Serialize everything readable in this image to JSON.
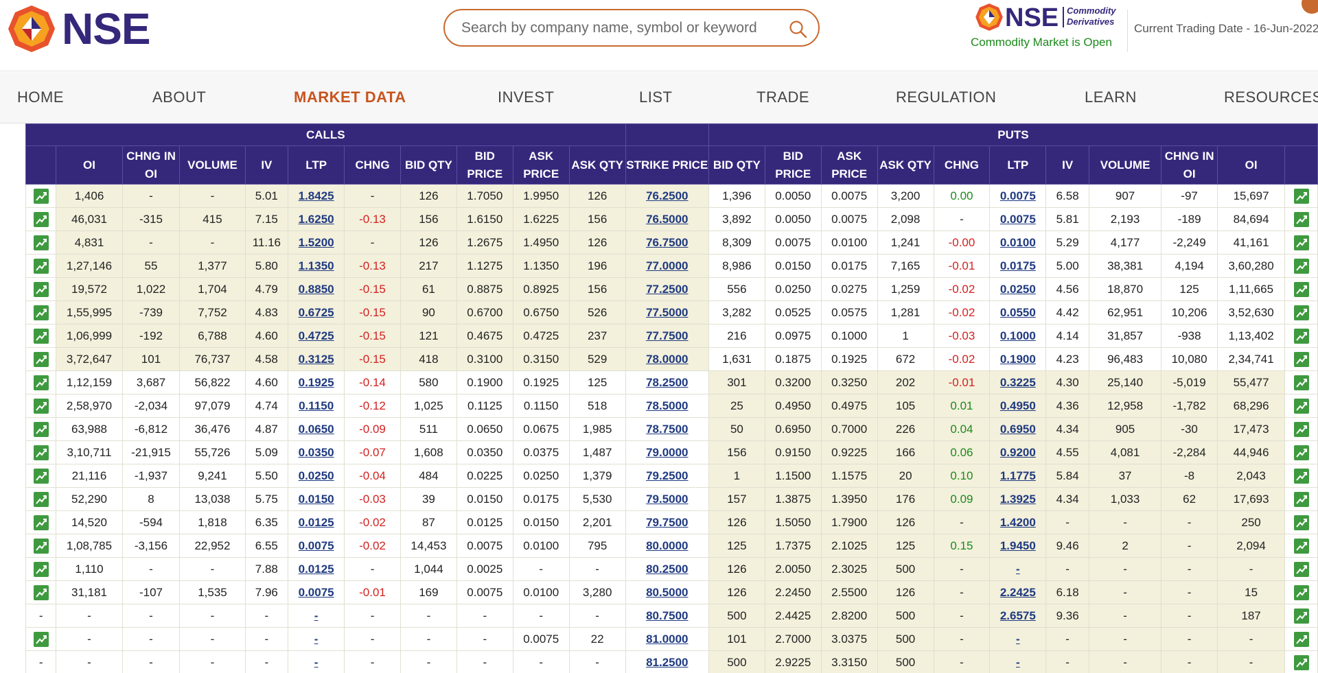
{
  "brand": {
    "name": "NSE",
    "secondary_name": "NSE",
    "secondary_tagline_1": "Commodity",
    "secondary_tagline_2": "Derivatives"
  },
  "search": {
    "placeholder": "Search by company name, symbol or keyword"
  },
  "status": {
    "market": "Commodity Market is Open",
    "trading_date": "Current Trading Date - 16-Jun-2022"
  },
  "colors": {
    "brand_purple": "#35287b",
    "accent_orange": "#c8541f",
    "itm_bg": "#f3f0dc",
    "positive": "#1b8a1b",
    "negative": "#d42020"
  },
  "nav": [
    {
      "label": "HOME",
      "active": false
    },
    {
      "label": "ABOUT",
      "active": false
    },
    {
      "label": "MARKET DATA",
      "active": true
    },
    {
      "label": "INVEST",
      "active": false
    },
    {
      "label": "LIST",
      "active": false
    },
    {
      "label": "TRADE",
      "active": false
    },
    {
      "label": "REGULATION",
      "active": false
    },
    {
      "label": "LEARN",
      "active": false
    },
    {
      "label": "RESOURCES",
      "active": false
    }
  ],
  "table": {
    "calls_label": "CALLS",
    "puts_label": "PUTS",
    "call_headers": [
      "OI",
      "CHNG IN OI",
      "VOLUME",
      "IV",
      "LTP",
      "CHNG",
      "BID QTY",
      "BID PRICE",
      "ASK PRICE",
      "ASK QTY"
    ],
    "strike_header": "STRIKE PRICE",
    "put_headers": [
      "BID QTY",
      "BID PRICE",
      "ASK PRICE",
      "ASK QTY",
      "CHNG",
      "LTP",
      "IV",
      "VOLUME",
      "CHNG IN OI",
      "OI"
    ],
    "rows": [
      {
        "cc": true,
        "pc": true,
        "c_itm": true,
        "p_itm": false,
        "calls": [
          "1,406",
          "-",
          "-",
          "5.01",
          "1.8425",
          "-",
          "126",
          "1.7050",
          "1.9950",
          "126"
        ],
        "strike": "76.2500",
        "puts": [
          "1,396",
          "0.0050",
          "0.0075",
          "3,200",
          "0.00",
          "0.0075",
          "6.58",
          "907",
          "-97",
          "15,697"
        ]
      },
      {
        "cc": true,
        "pc": true,
        "c_itm": true,
        "p_itm": false,
        "calls": [
          "46,031",
          "-315",
          "415",
          "7.15",
          "1.6250",
          "-0.13",
          "156",
          "1.6150",
          "1.6225",
          "156"
        ],
        "strike": "76.5000",
        "puts": [
          "3,892",
          "0.0050",
          "0.0075",
          "2,098",
          "-",
          "0.0075",
          "5.81",
          "2,193",
          "-189",
          "84,694"
        ]
      },
      {
        "cc": true,
        "pc": true,
        "c_itm": true,
        "p_itm": false,
        "calls": [
          "4,831",
          "-",
          "-",
          "11.16",
          "1.5200",
          "-",
          "126",
          "1.2675",
          "1.4950",
          "126"
        ],
        "strike": "76.7500",
        "puts": [
          "8,309",
          "0.0075",
          "0.0100",
          "1,241",
          "-0.00",
          "0.0100",
          "5.29",
          "4,177",
          "-2,249",
          "41,161"
        ]
      },
      {
        "cc": true,
        "pc": true,
        "c_itm": true,
        "p_itm": false,
        "calls": [
          "1,27,146",
          "55",
          "1,377",
          "5.80",
          "1.1350",
          "-0.13",
          "217",
          "1.1275",
          "1.1350",
          "196"
        ],
        "strike": "77.0000",
        "puts": [
          "8,986",
          "0.0150",
          "0.0175",
          "7,165",
          "-0.01",
          "0.0175",
          "5.00",
          "38,381",
          "4,194",
          "3,60,280"
        ]
      },
      {
        "cc": true,
        "pc": true,
        "c_itm": true,
        "p_itm": false,
        "calls": [
          "19,572",
          "1,022",
          "1,704",
          "4.79",
          "0.8850",
          "-0.15",
          "61",
          "0.8875",
          "0.8925",
          "156"
        ],
        "strike": "77.2500",
        "puts": [
          "556",
          "0.0250",
          "0.0275",
          "1,259",
          "-0.02",
          "0.0250",
          "4.56",
          "18,870",
          "125",
          "1,11,665"
        ]
      },
      {
        "cc": true,
        "pc": true,
        "c_itm": true,
        "p_itm": false,
        "calls": [
          "1,55,995",
          "-739",
          "7,752",
          "4.83",
          "0.6725",
          "-0.15",
          "90",
          "0.6700",
          "0.6750",
          "526"
        ],
        "strike": "77.5000",
        "puts": [
          "3,282",
          "0.0525",
          "0.0575",
          "1,281",
          "-0.02",
          "0.0550",
          "4.42",
          "62,951",
          "10,206",
          "3,52,630"
        ]
      },
      {
        "cc": true,
        "pc": true,
        "c_itm": true,
        "p_itm": false,
        "calls": [
          "1,06,999",
          "-192",
          "6,788",
          "4.60",
          "0.4725",
          "-0.15",
          "121",
          "0.4675",
          "0.4725",
          "237"
        ],
        "strike": "77.7500",
        "puts": [
          "216",
          "0.0975",
          "0.1000",
          "1",
          "-0.03",
          "0.1000",
          "4.14",
          "31,857",
          "-938",
          "1,13,402"
        ]
      },
      {
        "cc": true,
        "pc": true,
        "c_itm": true,
        "p_itm": false,
        "calls": [
          "3,72,647",
          "101",
          "76,737",
          "4.58",
          "0.3125",
          "-0.15",
          "418",
          "0.3100",
          "0.3150",
          "529"
        ],
        "strike": "78.0000",
        "puts": [
          "1,631",
          "0.1875",
          "0.1925",
          "672",
          "-0.02",
          "0.1900",
          "4.23",
          "96,483",
          "10,080",
          "2,34,741"
        ]
      },
      {
        "cc": true,
        "pc": true,
        "c_itm": false,
        "p_itm": true,
        "calls": [
          "1,12,159",
          "3,687",
          "56,822",
          "4.60",
          "0.1925",
          "-0.14",
          "580",
          "0.1900",
          "0.1925",
          "125"
        ],
        "strike": "78.2500",
        "puts": [
          "301",
          "0.3200",
          "0.3250",
          "202",
          "-0.01",
          "0.3225",
          "4.30",
          "25,140",
          "-5,019",
          "55,477"
        ]
      },
      {
        "cc": true,
        "pc": true,
        "c_itm": false,
        "p_itm": true,
        "calls": [
          "2,58,970",
          "-2,034",
          "97,079",
          "4.74",
          "0.1150",
          "-0.12",
          "1,025",
          "0.1125",
          "0.1150",
          "518"
        ],
        "strike": "78.5000",
        "puts": [
          "25",
          "0.4950",
          "0.4975",
          "105",
          "0.01",
          "0.4950",
          "4.36",
          "12,958",
          "-1,782",
          "68,296"
        ]
      },
      {
        "cc": true,
        "pc": true,
        "c_itm": false,
        "p_itm": true,
        "calls": [
          "63,988",
          "-6,812",
          "36,476",
          "4.87",
          "0.0650",
          "-0.09",
          "511",
          "0.0650",
          "0.0675",
          "1,985"
        ],
        "strike": "78.7500",
        "puts": [
          "50",
          "0.6950",
          "0.7000",
          "226",
          "0.04",
          "0.6950",
          "4.34",
          "905",
          "-30",
          "17,473"
        ]
      },
      {
        "cc": true,
        "pc": true,
        "c_itm": false,
        "p_itm": true,
        "calls": [
          "3,10,711",
          "-21,915",
          "55,726",
          "5.09",
          "0.0350",
          "-0.07",
          "1,608",
          "0.0350",
          "0.0375",
          "1,487"
        ],
        "strike": "79.0000",
        "puts": [
          "156",
          "0.9150",
          "0.9225",
          "166",
          "0.06",
          "0.9200",
          "4.55",
          "4,081",
          "-2,284",
          "44,946"
        ]
      },
      {
        "cc": true,
        "pc": true,
        "c_itm": false,
        "p_itm": true,
        "calls": [
          "21,116",
          "-1,937",
          "9,241",
          "5.50",
          "0.0250",
          "-0.04",
          "484",
          "0.0225",
          "0.0250",
          "1,379"
        ],
        "strike": "79.2500",
        "puts": [
          "1",
          "1.1500",
          "1.1575",
          "20",
          "0.10",
          "1.1775",
          "5.84",
          "37",
          "-8",
          "2,043"
        ]
      },
      {
        "cc": true,
        "pc": true,
        "c_itm": false,
        "p_itm": true,
        "calls": [
          "52,290",
          "8",
          "13,038",
          "5.75",
          "0.0150",
          "-0.03",
          "39",
          "0.0150",
          "0.0175",
          "5,530"
        ],
        "strike": "79.5000",
        "puts": [
          "157",
          "1.3875",
          "1.3950",
          "176",
          "0.09",
          "1.3925",
          "4.34",
          "1,033",
          "62",
          "17,693"
        ]
      },
      {
        "cc": true,
        "pc": true,
        "c_itm": false,
        "p_itm": true,
        "calls": [
          "14,520",
          "-594",
          "1,818",
          "6.35",
          "0.0125",
          "-0.02",
          "87",
          "0.0125",
          "0.0150",
          "2,201"
        ],
        "strike": "79.7500",
        "puts": [
          "126",
          "1.5050",
          "1.7900",
          "126",
          "-",
          "1.4200",
          "-",
          "-",
          "-",
          "250"
        ]
      },
      {
        "cc": true,
        "pc": true,
        "c_itm": false,
        "p_itm": true,
        "calls": [
          "1,08,785",
          "-3,156",
          "22,952",
          "6.55",
          "0.0075",
          "-0.02",
          "14,453",
          "0.0075",
          "0.0100",
          "795"
        ],
        "strike": "80.0000",
        "puts": [
          "125",
          "1.7375",
          "2.1025",
          "125",
          "0.15",
          "1.9450",
          "9.46",
          "2",
          "-",
          "2,094"
        ]
      },
      {
        "cc": true,
        "pc": true,
        "c_itm": false,
        "p_itm": true,
        "calls": [
          "1,110",
          "-",
          "-",
          "7.88",
          "0.0125",
          "-",
          "1,044",
          "0.0025",
          "-",
          "-"
        ],
        "strike": "80.2500",
        "puts": [
          "126",
          "2.0050",
          "2.3025",
          "500",
          "-",
          "-",
          "-",
          "-",
          "-",
          "-"
        ]
      },
      {
        "cc": true,
        "pc": true,
        "c_itm": false,
        "p_itm": true,
        "calls": [
          "31,181",
          "-107",
          "1,535",
          "7.96",
          "0.0075",
          "-0.01",
          "169",
          "0.0075",
          "0.0100",
          "3,280"
        ],
        "strike": "80.5000",
        "puts": [
          "126",
          "2.2450",
          "2.5500",
          "126",
          "-",
          "2.2425",
          "6.18",
          "-",
          "-",
          "15"
        ]
      },
      {
        "cc": false,
        "pc": true,
        "c_itm": false,
        "p_itm": true,
        "calls": [
          "-",
          "-",
          "-",
          "-",
          "-",
          "-",
          "-",
          "-",
          "-",
          "-"
        ],
        "strike": "80.7500",
        "puts": [
          "500",
          "2.4425",
          "2.8200",
          "500",
          "-",
          "2.6575",
          "9.36",
          "-",
          "-",
          "187"
        ]
      },
      {
        "cc": true,
        "pc": true,
        "c_itm": false,
        "p_itm": true,
        "calls": [
          "-",
          "-",
          "-",
          "-",
          "-",
          "-",
          "-",
          "-",
          "0.0075",
          "22"
        ],
        "strike": "81.0000",
        "puts": [
          "101",
          "2.7000",
          "3.0375",
          "500",
          "-",
          "-",
          "-",
          "-",
          "-",
          "-"
        ]
      },
      {
        "cc": false,
        "pc": true,
        "c_itm": false,
        "p_itm": true,
        "calls": [
          "-",
          "-",
          "-",
          "-",
          "-",
          "-",
          "-",
          "-",
          "-",
          "-"
        ],
        "strike": "81.2500",
        "puts": [
          "500",
          "2.9225",
          "3.3150",
          "500",
          "-",
          "-",
          "-",
          "-",
          "-",
          "-"
        ]
      }
    ]
  }
}
